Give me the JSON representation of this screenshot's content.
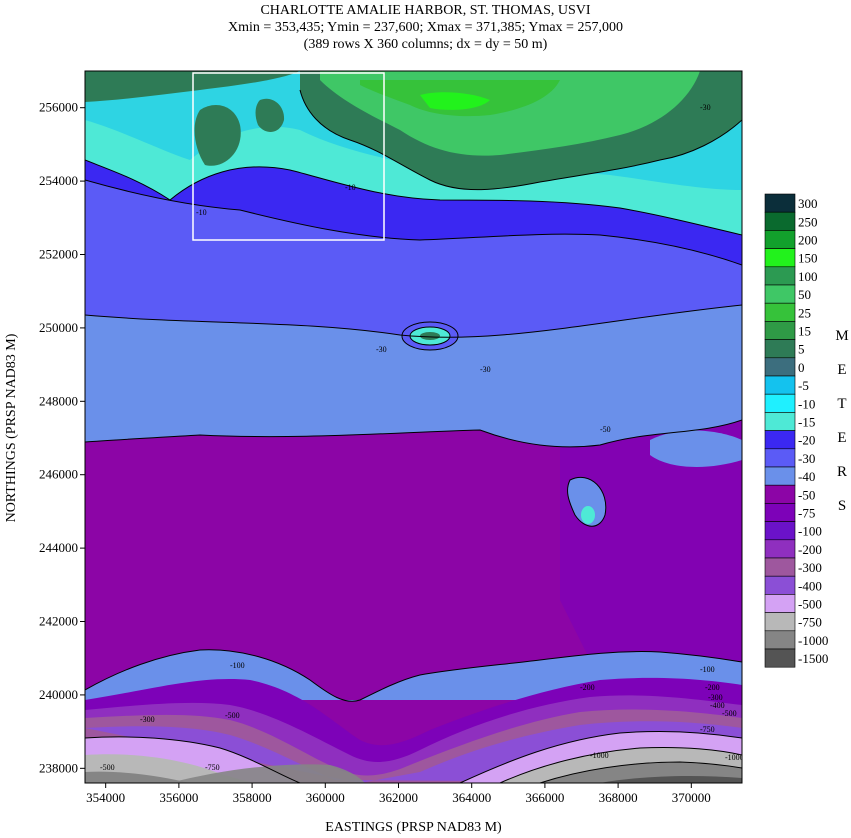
{
  "title_lines": [
    "CHARLOTTE AMALIE HARBOR, ST. THOMAS, USVI",
    "Xmin = 353,435; Ymin = 237,600; Xmax = 371,385; Ymax = 257,000",
    "(389 rows X 360 columns; dx = dy = 50 m)"
  ],
  "axes": {
    "xlabel": "EASTINGS (PRSP NAD83 M)",
    "ylabel": "NORTHINGS (PRSP NAD83 M)",
    "xlim": [
      353435,
      371385
    ],
    "ylim": [
      237600,
      257000
    ],
    "x_ticks": [
      "354000",
      "356000",
      "358000",
      "360000",
      "362000",
      "364000",
      "366000",
      "368000",
      "370000"
    ],
    "y_ticks": [
      "238000",
      "240000",
      "242000",
      "244000",
      "246000",
      "248000",
      "250000",
      "252000",
      "254000",
      "256000"
    ]
  },
  "legend": {
    "units_letters": [
      "M",
      "E",
      "T",
      "E",
      "R",
      "S"
    ],
    "entries": [
      {
        "label": "300",
        "color": "#0b2e3a"
      },
      {
        "label": "250",
        "color": "#0a6a2e"
      },
      {
        "label": "200",
        "color": "#12a02c"
      },
      {
        "label": "150",
        "color": "#22f21c"
      },
      {
        "label": "100",
        "color": "#2c9a52"
      },
      {
        "label": "50",
        "color": "#3fc766"
      },
      {
        "label": "25",
        "color": "#36c23a"
      },
      {
        "label": "15",
        "color": "#2f9a46"
      },
      {
        "label": "5",
        "color": "#2e7b56"
      },
      {
        "label": "0",
        "color": "#3c6e7e"
      },
      {
        "label": "-5",
        "color": "#14c2ee"
      },
      {
        "label": "-10",
        "color": "#1ff0ff"
      },
      {
        "label": "-15",
        "color": "#4ee9d6"
      },
      {
        "label": "-20",
        "color": "#3b28f2"
      },
      {
        "label": "-30",
        "color": "#5b5bf6"
      },
      {
        "label": "-40",
        "color": "#6a90ea"
      },
      {
        "label": "-50",
        "color": "#8c05a6"
      },
      {
        "label": "-75",
        "color": "#7d02b8"
      },
      {
        "label": "-100",
        "color": "#6b12c9"
      },
      {
        "label": "-200",
        "color": "#8f2fbf"
      },
      {
        "label": "-300",
        "color": "#9e579e"
      },
      {
        "label": "-400",
        "color": "#8b4fd6"
      },
      {
        "label": "-500",
        "color": "#d4a2f4"
      },
      {
        "label": "-750",
        "color": "#b8b8b8"
      },
      {
        "label": "-1000",
        "color": "#858585"
      },
      {
        "label": "-1500",
        "color": "#545454"
      }
    ]
  },
  "contour_labels": [
    "-30",
    "-30",
    "-30",
    "-10",
    "-10",
    "-50",
    "-100",
    "-200",
    "-300",
    "-400",
    "-500",
    "-500",
    "-750",
    "-750",
    "-1000",
    "-1000",
    "-300",
    "-200",
    "-100",
    "-500"
  ],
  "map_colors": {
    "bg_purple": "#8c05a6",
    "band_periwinkle": "#6a90ea",
    "band_blue": "#5b5bf6",
    "deep_blue": "#3b28f2",
    "cyan": "#4ee9d6",
    "green_dark": "#2e7b56",
    "green": "#3fc766",
    "green_bright": "#22f21c",
    "gray_light": "#b8b8b8",
    "gray_mid": "#858585",
    "gray_dark": "#545454",
    "lilac": "#d4a2f4",
    "violet": "#8b4fd6",
    "mauve": "#9e579e"
  }
}
